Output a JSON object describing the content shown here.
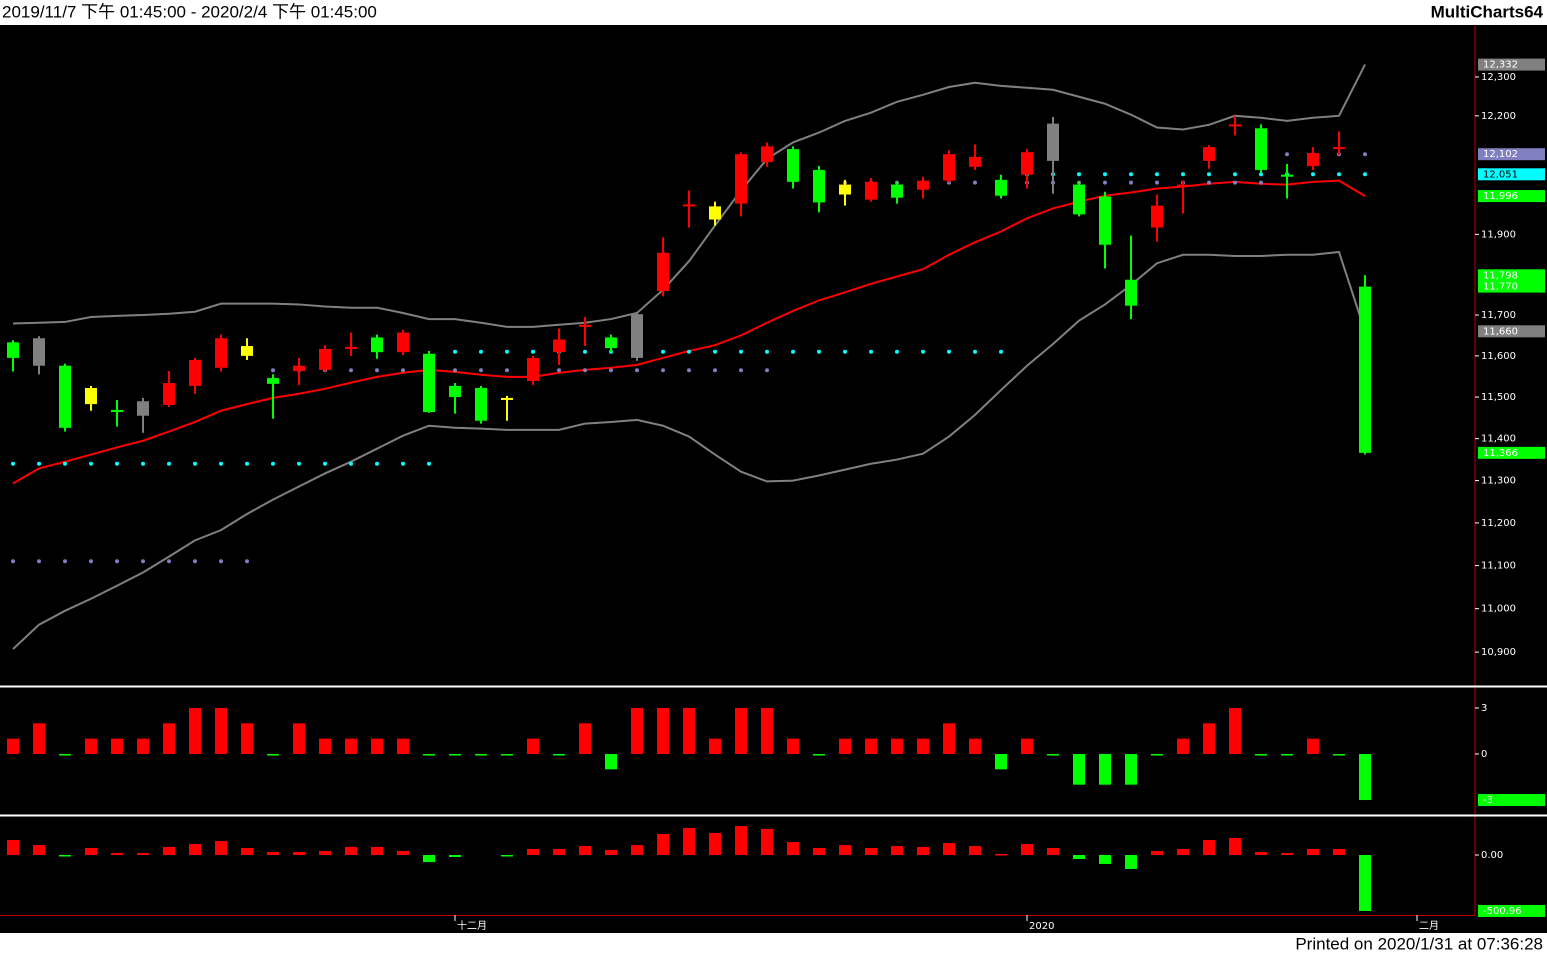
{
  "header": {
    "range": "2019/11/7 下午 01:45:00 - 2020/2/4 下午 01:45:00",
    "app": "MultiCharts64"
  },
  "footer": "Printed on 2020/1/31 at 07:36:28",
  "chart_data": [
    {
      "type": "candlestick",
      "log": true,
      "ylim": [
        10825,
        12435
      ],
      "yticks": [
        {
          "value": 12300,
          "label": "12,300"
        },
        {
          "value": 12200,
          "label": "12,200"
        },
        {
          "value": 11900,
          "label": "11,900"
        },
        {
          "value": 11700,
          "label": "11,700"
        },
        {
          "value": 11600,
          "label": "11,600"
        },
        {
          "value": 11500,
          "label": "11,500"
        },
        {
          "value": 11400,
          "label": "11,400"
        },
        {
          "value": 11300,
          "label": "11,300"
        },
        {
          "value": 11200,
          "label": "11,200"
        },
        {
          "value": 11100,
          "label": "11,100"
        },
        {
          "value": 11000,
          "label": "11,000"
        },
        {
          "value": 10900,
          "label": "10,900"
        }
      ],
      "xticks": [
        {
          "value": 17,
          "label": "十二月"
        },
        {
          "value": 39,
          "label": "2020"
        },
        {
          "value": 54,
          "label": "二月"
        }
      ],
      "open": [
        11633,
        11643,
        11576,
        11522,
        11469,
        11490,
        11481,
        11527,
        11571,
        11624,
        11546,
        11563,
        11566,
        11617,
        11645,
        11609,
        11605,
        11527,
        11522,
        11498,
        11539,
        11609,
        11671,
        11645,
        11702,
        11759,
        11970,
        11970,
        11977,
        12082,
        12115,
        12062,
        12025,
        11987,
        12025,
        12012,
        12035,
        12070,
        12037,
        12050,
        12180,
        12025,
        11995,
        11787,
        11917,
        12020,
        12085,
        12173,
        12168,
        12050,
        12072,
        12115,
        11770
      ],
      "high": [
        11638,
        11648,
        11581,
        11527,
        11493,
        11498,
        11563,
        11595,
        11652,
        11643,
        11555,
        11595,
        11626,
        11657,
        11652,
        11664,
        11612,
        11534,
        11527,
        11503,
        11600,
        11667,
        11695,
        11652,
        11707,
        11892,
        12010,
        11982,
        12107,
        12132,
        12122,
        12072,
        12037,
        12042,
        12032,
        12045,
        12112,
        12127,
        12050,
        12115,
        12197,
        12032,
        12007,
        11897,
        12000,
        12035,
        12125,
        12200,
        12178,
        12077,
        12120,
        12160,
        11798
      ],
      "low": [
        11562,
        11555,
        11417,
        11467,
        11429,
        11414,
        11476,
        11508,
        11562,
        11590,
        11448,
        11529,
        11562,
        11600,
        11593,
        11602,
        11462,
        11460,
        11436,
        11443,
        11529,
        11578,
        11624,
        11609,
        11588,
        11746,
        11917,
        11922,
        11945,
        12070,
        12015,
        11955,
        11972,
        11982,
        11977,
        11990,
        12030,
        12062,
        11990,
        12015,
        12002,
        11945,
        11815,
        11690,
        11882,
        11952,
        12065,
        12150,
        12055,
        11990,
        12062,
        12100,
        11362
      ],
      "close": [
        11595,
        11576,
        11426,
        11483,
        11464,
        11455,
        11534,
        11590,
        11643,
        11600,
        11532,
        11576,
        11617,
        11622,
        11609,
        11657,
        11464,
        11500,
        11443,
        11493,
        11595,
        11640,
        11676,
        11619,
        11595,
        11854,
        11975,
        11937,
        12102,
        12122,
        12032,
        11980,
        12000,
        12032,
        11992,
        12035,
        12102,
        12095,
        11997,
        12107,
        12085,
        11950,
        11874,
        11723,
        11972,
        12025,
        12120,
        12178,
        12062,
        12045,
        12105,
        12120,
        11366
      ],
      "candle_colors": [
        "#00ff00",
        "#808080",
        "#00ff00",
        "#ffff00",
        "#00ff00",
        "#808080",
        "#ff0000",
        "#ff0000",
        "#ff0000",
        "#ffff00",
        "#00ff00",
        "#ff0000",
        "#ff0000",
        "#ff0000",
        "#00ff00",
        "#ff0000",
        "#00ff00",
        "#00ff00",
        "#00ff00",
        "#ffff00",
        "#ff0000",
        "#ff0000",
        "#ff0000",
        "#00ff00",
        "#808080",
        "#ff0000",
        "#ff0000",
        "#ffff00",
        "#ff0000",
        "#ff0000",
        "#00ff00",
        "#00ff00",
        "#ffff00",
        "#ff0000",
        "#00ff00",
        "#ff0000",
        "#ff0000",
        "#ff0000",
        "#00ff00",
        "#ff0000",
        "#808080",
        "#00ff00",
        "#00ff00",
        "#00ff00",
        "#ff0000",
        "#ff0000",
        "#ff0000",
        "#ff0000",
        "#00ff00",
        "#00ff00",
        "#ff0000",
        "#ff0000",
        "#00ff00"
      ],
      "series": [
        {
          "style": "line",
          "color": "#808080",
          "values": [
            11679,
            11681,
            11683,
            11695,
            11698,
            11700,
            11703,
            11708,
            11728,
            11728,
            11728,
            11726,
            11721,
            11718,
            11718,
            11705,
            11690,
            11690,
            11681,
            11671,
            11671,
            11676,
            11681,
            11690,
            11705,
            11762,
            11833,
            11922,
            12010,
            12090,
            12132,
            12157,
            12187,
            12208,
            12236,
            12254,
            12274,
            12285,
            12277,
            12272,
            12267,
            12249,
            12231,
            12203,
            12170,
            12165,
            12177,
            12200,
            12195,
            12187,
            12195,
            12200,
            12332
          ]
        },
        {
          "style": "line",
          "color": "#808080",
          "values": [
            10907,
            10963,
            10995,
            11023,
            11053,
            11084,
            11121,
            11159,
            11183,
            11221,
            11255,
            11286,
            11317,
            11345,
            11376,
            11407,
            11431,
            11426,
            11424,
            11421,
            11421,
            11421,
            11436,
            11440,
            11445,
            11431,
            11405,
            11362,
            11321,
            11298,
            11300,
            11312,
            11326,
            11340,
            11350,
            11364,
            11405,
            11457,
            11517,
            11576,
            11629,
            11686,
            11726,
            11774,
            11828,
            11849,
            11849,
            11846,
            11846,
            11849,
            11849,
            11856,
            11660
          ]
        },
        {
          "style": "line",
          "color": "#ff0000",
          "values": [
            11293,
            11329,
            11345,
            11362,
            11379,
            11395,
            11417,
            11440,
            11467,
            11483,
            11498,
            11508,
            11520,
            11535,
            11549,
            11559,
            11566,
            11561,
            11554,
            11549,
            11549,
            11559,
            11566,
            11571,
            11578,
            11595,
            11612,
            11626,
            11650,
            11681,
            11710,
            11736,
            11756,
            11777,
            11795,
            11813,
            11849,
            11880,
            11907,
            11940,
            11965,
            11982,
            11997,
            12005,
            12015,
            12020,
            12027,
            12032,
            12027,
            12025,
            12032,
            12035,
            11996
          ]
        },
        {
          "style": "dots",
          "color": "#00ffff",
          "values": [
            11340,
            11340,
            11340,
            11340,
            11340,
            11340,
            11340,
            11340,
            11340,
            11340,
            11340,
            11340,
            11340,
            11340,
            11340,
            11340,
            11340,
            11610,
            11610,
            11610,
            11610,
            11610,
            11610,
            11610,
            11610,
            11610,
            11610,
            11610,
            11610,
            11610,
            11610,
            11610,
            11610,
            11610,
            11610,
            11610,
            11610,
            11610,
            11610,
            12051,
            12051,
            12051,
            12051,
            12051,
            12051,
            12051,
            12051,
            12051,
            12051,
            12051,
            12051,
            12051,
            12051
          ]
        },
        {
          "style": "dots",
          "color": "#8080c0",
          "values": [
            11110,
            11110,
            11110,
            11110,
            11110,
            11110,
            11110,
            11110,
            11110,
            11110,
            11565,
            11565,
            11565,
            11565,
            11565,
            11565,
            11565,
            11565,
            11565,
            11565,
            11565,
            11565,
            11565,
            11565,
            11565,
            11565,
            11565,
            11565,
            11565,
            11565,
            null,
            12030,
            12030,
            12030,
            12030,
            12030,
            12030,
            12030,
            12030,
            12030,
            12030,
            12030,
            12030,
            12030,
            12030,
            12030,
            12030,
            12030,
            12030,
            12102,
            12102,
            12102,
            12102
          ]
        }
      ],
      "markers": [
        {
          "value": 12332,
          "label": "12,332",
          "color": "#808080"
        },
        {
          "value": 12102,
          "label": "12,102",
          "color": "#8080c0"
        },
        {
          "value": 12051,
          "label": "12,051",
          "color": "#00ffff"
        },
        {
          "value": 11996,
          "label": "11,996",
          "color": "#00ff00"
        },
        {
          "value": 11798,
          "label": "11,798",
          "color": "#00ff00"
        },
        {
          "value": 11770,
          "label": "11,770",
          "color": "#00ff00"
        },
        {
          "value": 11660,
          "label": "11,660",
          "color": "#808080"
        },
        {
          "value": 11366,
          "label": "11,366",
          "color": "#00ff00"
        }
      ]
    },
    {
      "type": "bar",
      "ylim": [
        -3.78,
        4.17
      ],
      "yticks": [
        3,
        0
      ],
      "up_color": "#ff0000",
      "down_color": "#00ff00",
      "values": [
        1,
        2,
        0,
        1,
        1,
        1,
        2,
        3,
        3,
        2,
        0,
        2,
        1,
        1,
        1,
        1,
        0,
        0,
        0,
        0,
        1,
        0,
        2,
        -1,
        3,
        3,
        3,
        1,
        3,
        3,
        1,
        0,
        1,
        1,
        1,
        1,
        2,
        1,
        -1,
        1,
        0,
        -2,
        -2,
        -2,
        0,
        1,
        2,
        3,
        0,
        0,
        1,
        0,
        -3
      ],
      "markers": [
        {
          "value": -3,
          "color": "#00ff00"
        }
      ]
    },
    {
      "type": "bar",
      "ylim": [
        -537,
        331
      ],
      "yticks": [
        {
          "value": 0,
          "label": "0.00"
        }
      ],
      "up_color": "#ff0000",
      "down_color": "#00ff00",
      "values": [
        134,
        89,
        -9,
        63,
        18,
        18,
        72,
        98,
        125,
        63,
        27,
        27,
        36,
        72,
        72,
        36,
        -63,
        -18,
        null,
        -9,
        54,
        54,
        80,
        45,
        89,
        188,
        241,
        197,
        259,
        233,
        116,
        63,
        89,
        63,
        80,
        72,
        107,
        80,
        9,
        98,
        63,
        -36,
        -80,
        -125,
        36,
        54,
        134,
        152,
        27,
        18,
        54,
        54,
        -500.96
      ],
      "markers": [
        {
          "value": -500.96,
          "color": "#00ff00"
        }
      ]
    }
  ]
}
